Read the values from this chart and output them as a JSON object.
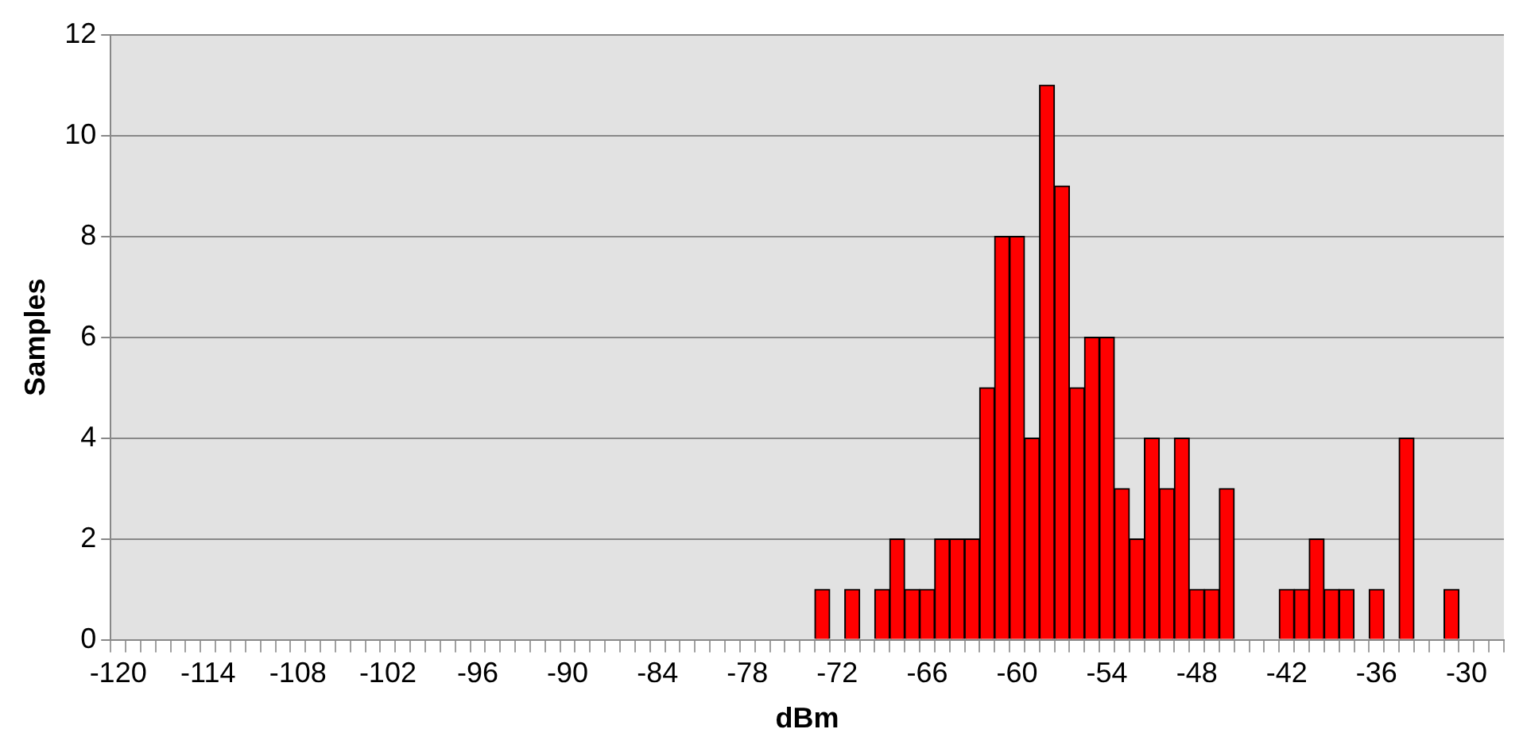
{
  "chart_data": {
    "type": "bar",
    "xlabel": "dBm",
    "ylabel": "Samples",
    "categories": [
      "-120",
      null,
      null,
      null,
      null,
      null,
      "-114",
      null,
      null,
      null,
      null,
      null,
      "-108",
      null,
      null,
      null,
      null,
      null,
      "-102",
      null,
      null,
      null,
      null,
      null,
      "-96",
      null,
      null,
      null,
      null,
      null,
      "-90",
      null,
      null,
      null,
      null,
      null,
      "-84",
      null,
      null,
      null,
      null,
      null,
      "-78",
      null,
      null,
      null,
      null,
      null,
      "-72",
      null,
      null,
      null,
      null,
      null,
      "-66",
      null,
      null,
      null,
      null,
      null,
      "-60",
      null,
      null,
      null,
      null,
      null,
      "-54",
      null,
      null,
      null,
      null,
      null,
      "-48",
      null,
      null,
      null,
      null,
      null,
      "-42",
      null,
      null,
      null,
      null,
      null,
      "-36",
      null,
      null,
      null,
      null,
      null,
      "-30",
      null,
      null
    ],
    "values": [
      0,
      0,
      0,
      0,
      0,
      0,
      0,
      0,
      0,
      0,
      0,
      0,
      0,
      0,
      0,
      0,
      0,
      0,
      0,
      0,
      0,
      0,
      0,
      0,
      0,
      0,
      0,
      0,
      0,
      0,
      0,
      0,
      0,
      0,
      0,
      0,
      0,
      0,
      0,
      0,
      0,
      0,
      0,
      0,
      0,
      0,
      0,
      1,
      0,
      1,
      0,
      1,
      2,
      1,
      1,
      2,
      2,
      2,
      5,
      8,
      8,
      4,
      11,
      9,
      5,
      6,
      6,
      3,
      2,
      4,
      3,
      4,
      1,
      1,
      3,
      0,
      0,
      0,
      1,
      1,
      2,
      1,
      1,
      0,
      1,
      0,
      4,
      0,
      0,
      1,
      0,
      0,
      0
    ],
    "color": "#ff0000",
    "ylim": [
      0,
      12
    ],
    "yticks": [
      0,
      2,
      4,
      6,
      8,
      10,
      12
    ],
    "grid": "y",
    "legend": false
  }
}
